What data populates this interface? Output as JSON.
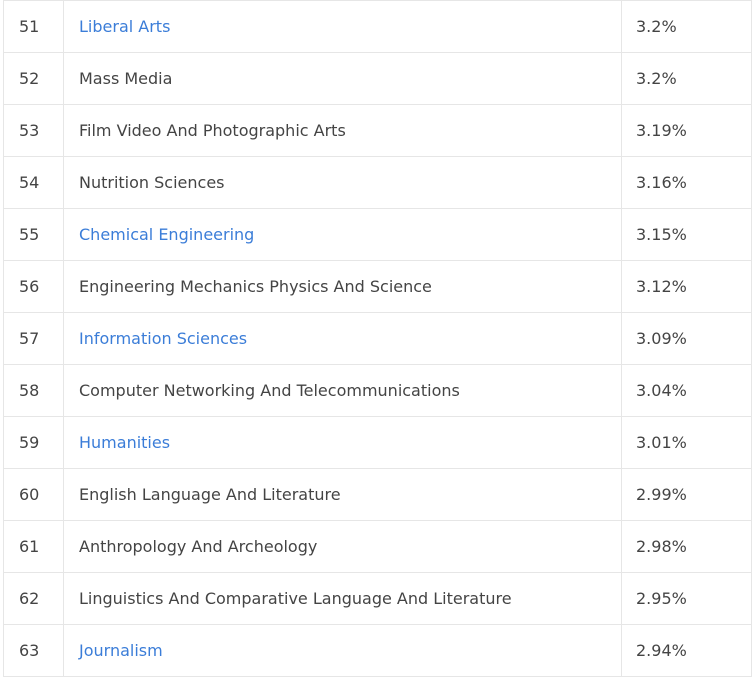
{
  "rows": [
    {
      "rank": "51",
      "major": "Liberal Arts",
      "pct": "3.2%",
      "link": true
    },
    {
      "rank": "52",
      "major": "Mass Media",
      "pct": "3.2%",
      "link": false
    },
    {
      "rank": "53",
      "major": "Film Video And Photographic Arts",
      "pct": "3.19%",
      "link": false
    },
    {
      "rank": "54",
      "major": "Nutrition Sciences",
      "pct": "3.16%",
      "link": false
    },
    {
      "rank": "55",
      "major": "Chemical Engineering",
      "pct": "3.15%",
      "link": true
    },
    {
      "rank": "56",
      "major": "Engineering Mechanics Physics And Science",
      "pct": "3.12%",
      "link": false
    },
    {
      "rank": "57",
      "major": "Information Sciences",
      "pct": "3.09%",
      "link": true
    },
    {
      "rank": "58",
      "major": "Computer Networking And Telecommunications",
      "pct": "3.04%",
      "link": false
    },
    {
      "rank": "59",
      "major": "Humanities",
      "pct": "3.01%",
      "link": true
    },
    {
      "rank": "60",
      "major": "English Language And Literature",
      "pct": "2.99%",
      "link": false
    },
    {
      "rank": "61",
      "major": "Anthropology And Archeology",
      "pct": "2.98%",
      "link": false
    },
    {
      "rank": "62",
      "major": "Linguistics And Comparative Language And Literature",
      "pct": "2.95%",
      "link": false
    },
    {
      "rank": "63",
      "major": "Journalism",
      "pct": "2.94%",
      "link": true
    }
  ],
  "colors": {
    "link": "#3b7dd8",
    "text": "#444444",
    "border": "#e6e6e6"
  }
}
